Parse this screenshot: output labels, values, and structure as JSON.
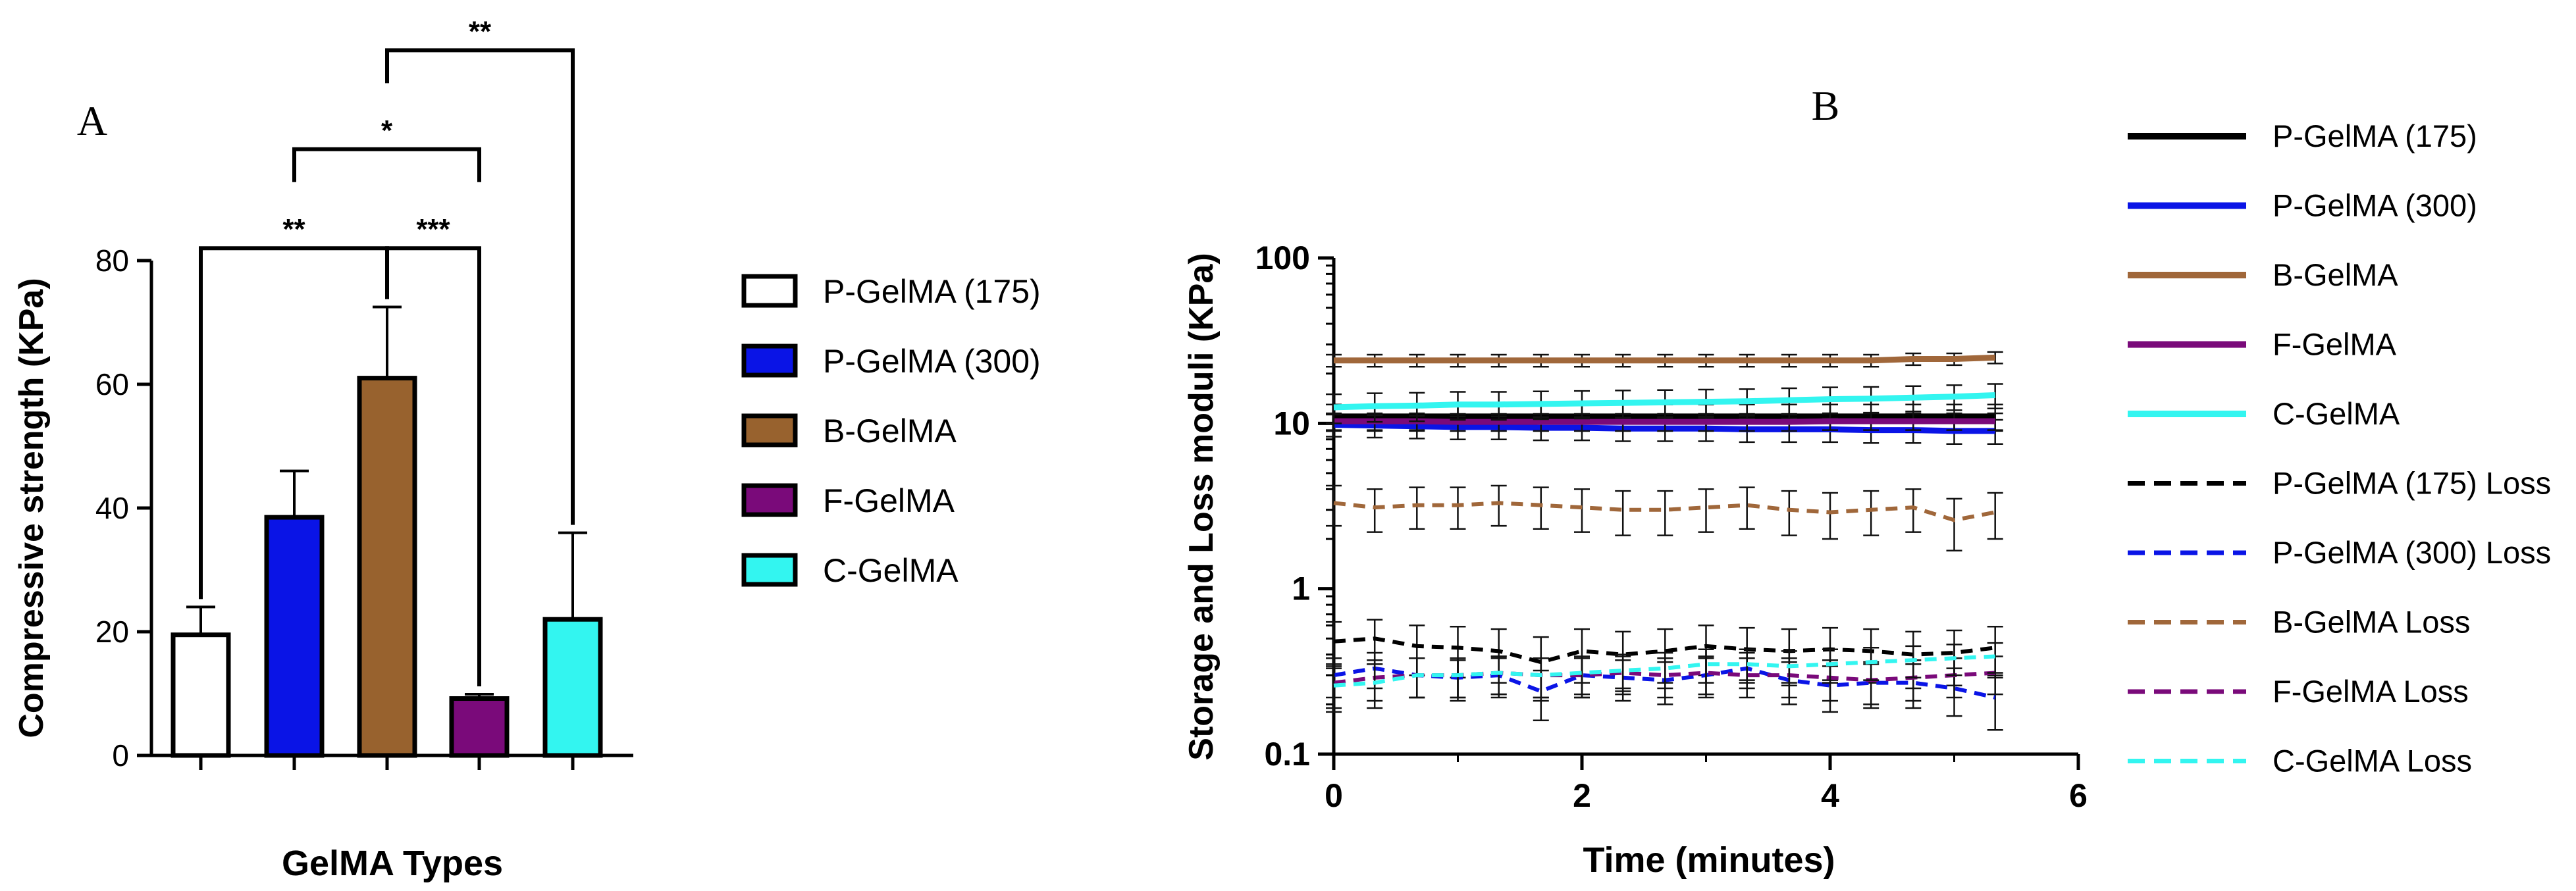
{
  "chart_data": [
    {
      "panel": "A",
      "type": "bar",
      "xlabel": "GelMA Types",
      "ylabel": "Compressive strength (KPa)",
      "ylim": [
        0,
        80
      ],
      "yticks": [
        0,
        20,
        40,
        60,
        80
      ],
      "categories": [
        "P-GelMA (175)",
        "P-GelMA (300)",
        "B-GelMA",
        "F-GelMA",
        "C-GelMA"
      ],
      "values": [
        19.5,
        38.5,
        61,
        9.2,
        22
      ],
      "errors": [
        4.5,
        7.5,
        11.5,
        0.7,
        14
      ],
      "colors": [
        "#ffffff",
        "#0a14e6",
        "#98622e",
        "#7a0a7a",
        "#33f5f0"
      ],
      "legend": [
        "P-GelMA (175)",
        "P-GelMA (300)",
        "B-GelMA",
        "F-GelMA",
        "C-GelMA"
      ],
      "significance": [
        {
          "from": 0,
          "to": 2,
          "label": "**",
          "level": 82
        },
        {
          "from": 2,
          "to": 3,
          "label": "***",
          "level": 82
        },
        {
          "from": 1,
          "to": 3,
          "label": "*",
          "level": 98
        },
        {
          "from": 2,
          "to": 4,
          "label": "**",
          "level": 114
        }
      ]
    },
    {
      "panel": "B",
      "type": "line",
      "xlabel": "Time (minutes)",
      "ylabel": "Storage and Loss moduli (KPa)",
      "xlim": [
        0,
        6
      ],
      "xticks": [
        0,
        2,
        4,
        6
      ],
      "yscale": "log",
      "ylim": [
        0.1,
        100
      ],
      "yticks": [
        "0.1",
        "1",
        "10",
        "100"
      ],
      "x": [
        0,
        0.33,
        0.67,
        1.0,
        1.33,
        1.67,
        2.0,
        2.33,
        2.67,
        3.0,
        3.33,
        3.67,
        4.0,
        4.33,
        4.67,
        5.0,
        5.33
      ],
      "series": [
        {
          "name": "P-GelMA (175)",
          "style": "solid",
          "color": "#000000",
          "values": [
            11,
            11,
            11,
            11,
            11,
            11,
            11,
            11,
            11,
            11,
            11,
            11,
            11,
            11,
            11,
            11,
            11
          ],
          "err": 2.0
        },
        {
          "name": "P-GelMA (300)",
          "style": "solid",
          "color": "#0a14e6",
          "values": [
            9.8,
            9.7,
            9.6,
            9.5,
            9.5,
            9.4,
            9.4,
            9.3,
            9.3,
            9.3,
            9.2,
            9.2,
            9.2,
            9.1,
            9.1,
            9.0,
            9.0
          ],
          "err": 1.5
        },
        {
          "name": "B-GelMA",
          "style": "solid",
          "color": "#a0673a",
          "values": [
            24,
            24,
            24,
            24,
            24,
            24,
            24,
            24,
            24,
            24,
            24,
            24,
            24,
            24,
            24.5,
            24.5,
            25
          ],
          "err": 2.0
        },
        {
          "name": "F-GelMA",
          "style": "solid",
          "color": "#7a0a7a",
          "values": [
            10.3,
            10.3,
            10.3,
            10.2,
            10.2,
            10.2,
            10.2,
            10.2,
            10.2,
            10.2,
            10.2,
            10.2,
            10.3,
            10.3,
            10.3,
            10.3,
            10.3
          ],
          "err": 1.2
        },
        {
          "name": "C-GelMA",
          "style": "solid",
          "color": "#33f5f0",
          "values": [
            12.5,
            12.7,
            12.8,
            13.0,
            13.0,
            13.1,
            13.2,
            13.3,
            13.4,
            13.5,
            13.6,
            13.8,
            14.0,
            14.1,
            14.3,
            14.5,
            14.8
          ],
          "err": 2.5
        },
        {
          "name": "P-GelMA (175) Loss",
          "style": "dashed",
          "color": "#000000",
          "values": [
            0.48,
            0.5,
            0.45,
            0.44,
            0.42,
            0.36,
            0.42,
            0.4,
            0.42,
            0.45,
            0.43,
            0.42,
            0.43,
            0.42,
            0.4,
            0.41,
            0.44
          ],
          "err": 0.15
        },
        {
          "name": "P-GelMA (300) Loss",
          "style": "dashed",
          "color": "#0a14e6",
          "values": [
            0.3,
            0.33,
            0.3,
            0.29,
            0.3,
            0.24,
            0.3,
            0.29,
            0.28,
            0.3,
            0.33,
            0.28,
            0.26,
            0.27,
            0.27,
            0.25,
            0.22
          ],
          "err": 0.08
        },
        {
          "name": "B-GelMA Loss",
          "style": "dashed",
          "color": "#a0673a",
          "values": [
            3.3,
            3.1,
            3.2,
            3.2,
            3.3,
            3.2,
            3.1,
            3.0,
            3.0,
            3.1,
            3.2,
            3.0,
            2.9,
            3.0,
            3.1,
            2.6,
            2.9
          ],
          "err": 0.9
        },
        {
          "name": "F-GelMA Loss",
          "style": "dashed",
          "color": "#7a0a7a",
          "values": [
            0.27,
            0.29,
            0.3,
            0.3,
            0.31,
            0.3,
            0.3,
            0.31,
            0.3,
            0.31,
            0.3,
            0.3,
            0.29,
            0.28,
            0.29,
            0.3,
            0.31
          ],
          "err": 0.08
        },
        {
          "name": "C-GelMA Loss",
          "style": "dashed",
          "color": "#33f5f0",
          "values": [
            0.26,
            0.27,
            0.3,
            0.3,
            0.31,
            0.3,
            0.31,
            0.32,
            0.33,
            0.35,
            0.35,
            0.34,
            0.35,
            0.36,
            0.37,
            0.38,
            0.39
          ],
          "err": 0.08
        }
      ]
    }
  ],
  "labels": {
    "panel_a": "A",
    "panel_b": "B"
  }
}
